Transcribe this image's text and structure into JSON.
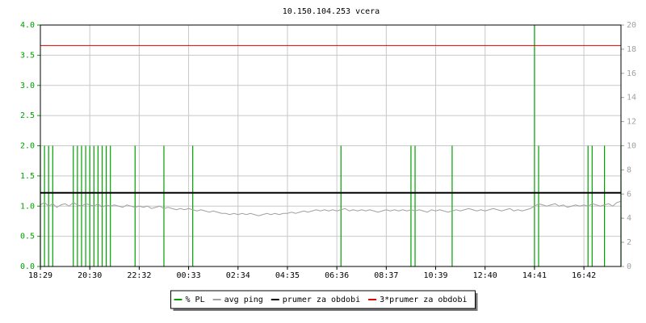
{
  "chart_data": {
    "type": "line",
    "title": "10.150.104.253 vcera",
    "categories": [
      "18:29",
      null,
      null,
      null,
      null,
      null,
      null,
      null,
      null,
      null,
      null,
      null,
      "20:30",
      null,
      null,
      null,
      null,
      null,
      null,
      null,
      null,
      null,
      null,
      null,
      "22:32",
      null,
      null,
      null,
      null,
      null,
      null,
      null,
      null,
      null,
      null,
      null,
      "00:33",
      null,
      null,
      null,
      null,
      null,
      null,
      null,
      null,
      null,
      null,
      null,
      "02:34",
      null,
      null,
      null,
      null,
      null,
      null,
      null,
      null,
      null,
      null,
      null,
      "04:35",
      null,
      null,
      null,
      null,
      null,
      null,
      null,
      null,
      null,
      null,
      null,
      "06:36",
      null,
      null,
      null,
      null,
      null,
      null,
      null,
      null,
      null,
      null,
      null,
      "08:37",
      null,
      null,
      null,
      null,
      null,
      null,
      null,
      null,
      null,
      null,
      null,
      "10:39",
      null,
      null,
      null,
      null,
      null,
      null,
      null,
      null,
      null,
      null,
      null,
      "12:40",
      null,
      null,
      null,
      null,
      null,
      null,
      null,
      null,
      null,
      null,
      null,
      "14:41",
      null,
      null,
      null,
      null,
      null,
      null,
      null,
      null,
      null,
      null,
      null,
      "16:42",
      null,
      null,
      null,
      null,
      null,
      null,
      null,
      null,
      null
    ],
    "series": [
      {
        "name": "% PL",
        "color": "#00a000",
        "axis": "y",
        "style": "spikes",
        "values": [
          2,
          2,
          2,
          2,
          0,
          0,
          0,
          0,
          2,
          2,
          2,
          2,
          2,
          2,
          2,
          2,
          2,
          2,
          0,
          0,
          0,
          0,
          0,
          2,
          0,
          0,
          0,
          0,
          0,
          0,
          2,
          0,
          0,
          0,
          0,
          0,
          0,
          2,
          0,
          0,
          0,
          0,
          0,
          0,
          0,
          0,
          0,
          0,
          0,
          0,
          0,
          0,
          0,
          0,
          0,
          0,
          0,
          0,
          0,
          0,
          0,
          0,
          0,
          0,
          0,
          0,
          0,
          0,
          0,
          0,
          0,
          0,
          0,
          2,
          0,
          0,
          0,
          0,
          0,
          0,
          0,
          0,
          0,
          0,
          0,
          0,
          0,
          0,
          0,
          0,
          2,
          2,
          0,
          0,
          0,
          0,
          0,
          0,
          0,
          0,
          2,
          0,
          0,
          0,
          0,
          0,
          0,
          0,
          0,
          0,
          0,
          0,
          0,
          0,
          0,
          0,
          0,
          0,
          0,
          0,
          4,
          2,
          0,
          0,
          0,
          0,
          0,
          0,
          0,
          0,
          0,
          0,
          0,
          2,
          2,
          0,
          0,
          2,
          0,
          0,
          0,
          2
        ]
      },
      {
        "name": "avg ping",
        "color": "#a0a0a0",
        "axis": "y2",
        "style": "line",
        "values": [
          5.1,
          5.3,
          5.0,
          5.2,
          4.9,
          5.1,
          5.2,
          5.0,
          5.3,
          5.1,
          5.0,
          5.2,
          5.1,
          5.0,
          5.2,
          4.9,
          5.1,
          5.0,
          5.1,
          5.0,
          4.9,
          5.1,
          5.0,
          4.9,
          5.0,
          4.9,
          5.0,
          4.8,
          4.9,
          5.0,
          4.8,
          4.9,
          4.8,
          4.7,
          4.8,
          4.7,
          4.8,
          4.7,
          4.6,
          4.7,
          4.6,
          4.5,
          4.6,
          4.5,
          4.4,
          4.4,
          4.3,
          4.4,
          4.3,
          4.4,
          4.3,
          4.4,
          4.3,
          4.2,
          4.3,
          4.4,
          4.3,
          4.4,
          4.3,
          4.4,
          4.4,
          4.5,
          4.4,
          4.5,
          4.6,
          4.5,
          4.6,
          4.7,
          4.6,
          4.7,
          4.6,
          4.7,
          4.6,
          4.7,
          4.8,
          4.6,
          4.7,
          4.6,
          4.7,
          4.6,
          4.7,
          4.6,
          4.5,
          4.6,
          4.7,
          4.6,
          4.7,
          4.6,
          4.7,
          4.6,
          4.7,
          4.6,
          4.7,
          4.6,
          4.5,
          4.7,
          4.6,
          4.7,
          4.6,
          4.5,
          4.6,
          4.7,
          4.6,
          4.7,
          4.8,
          4.7,
          4.6,
          4.7,
          4.6,
          4.7,
          4.8,
          4.7,
          4.6,
          4.7,
          4.8,
          4.6,
          4.7,
          4.6,
          4.7,
          4.8,
          5.0,
          5.2,
          5.1,
          5.0,
          5.1,
          5.2,
          5.0,
          5.1,
          4.9,
          5.0,
          5.1,
          5.0,
          5.1,
          5.0,
          5.2,
          5.1,
          5.0,
          5.1,
          5.2,
          5.0,
          5.3,
          5.4
        ]
      }
    ],
    "reference_lines": [
      {
        "name": "prumer za obdobi",
        "color": "#000000",
        "axis": "y2",
        "value": 6.1,
        "width": 2
      },
      {
        "name": "3*prumer za obdobi",
        "color": "#e00000",
        "axis": "y2",
        "value": 18.3,
        "width": 1
      }
    ],
    "ylim": [
      0,
      4
    ],
    "yticks": [
      {
        "value": 0,
        "label": "0.0"
      },
      {
        "value": 0.5,
        "label": "0.5"
      },
      {
        "value": 1,
        "label": "1.0"
      },
      {
        "value": 1.5,
        "label": "1.5"
      },
      {
        "value": 2,
        "label": "2.0"
      },
      {
        "value": 2.5,
        "label": "2.5"
      },
      {
        "value": 3,
        "label": "3.0"
      },
      {
        "value": 3.5,
        "label": "3.5"
      },
      {
        "value": 4,
        "label": "4.0"
      }
    ],
    "y2lim": [
      0,
      20
    ],
    "y2ticks": [
      0,
      2,
      4,
      6,
      8,
      10,
      12,
      14,
      16,
      18,
      20
    ],
    "grid": true,
    "legend": "bottom"
  }
}
